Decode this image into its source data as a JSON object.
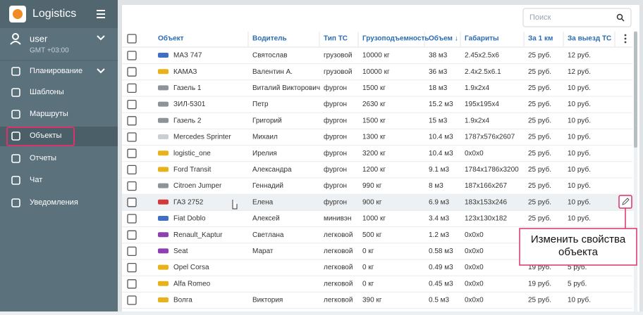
{
  "app": {
    "title": "Logistics"
  },
  "user": {
    "name": "user",
    "timezone": "GMT +03:00"
  },
  "nav": [
    "Планирование",
    "Шаблоны",
    "Маршруты",
    "Объекты",
    "Отчеты",
    "Чат",
    "Уведомления"
  ],
  "search": {
    "placeholder": "Поиск"
  },
  "table": {
    "columns": [
      "Объект",
      "Водитель",
      "Тип ТС",
      "Грузоподъемность",
      "Объем ↓",
      "Габариты",
      "За 1 км",
      "За выезд ТС"
    ],
    "rows": [
      [
        "МАЗ 747",
        "Святослав",
        "грузовой",
        "10000 кг",
        "38 м3",
        "2.45x2.5x6",
        "25 руб.",
        "12 руб."
      ],
      [
        "КАМАЗ",
        "Валентин А.",
        "грузовой",
        "10000 кг",
        "36 м3",
        "2.4x2.5x6.1",
        "25 руб.",
        "12 руб."
      ],
      [
        "Газель 1",
        "Виталий Викторович",
        "фургон",
        "1500 кг",
        "18 м3",
        "1.9x2x4",
        "25 руб.",
        "10 руб."
      ],
      [
        "ЗИЛ-5301",
        "Петр",
        "фургон",
        "2630 кг",
        "15.2 м3",
        "195x195x4",
        "25 руб.",
        "10 руб."
      ],
      [
        "Газель 2",
        "Григорий",
        "фургон",
        "1500 кг",
        "15 м3",
        "1.9x2x4",
        "25 руб.",
        "10 руб."
      ],
      [
        "Mercedes Sprinter",
        "Михаил",
        "фургон",
        "1300 кг",
        "10.4 м3",
        "1787x576x2607",
        "25 руб.",
        "10 руб."
      ],
      [
        "logistic_one",
        "Ирелия",
        "фургон",
        "3200 кг",
        "10.4 м3",
        "0x0x0",
        "25 руб.",
        "10 руб."
      ],
      [
        "Ford Transit",
        "Александра",
        "фургон",
        "1200 кг",
        "9.1 м3",
        "1784x1786x3200",
        "25 руб.",
        "10 руб."
      ],
      [
        "Citroen Jumper",
        "Геннадий",
        "фургон",
        "990 кг",
        "8 м3",
        "187x166x267",
        "25 руб.",
        "10 руб."
      ],
      [
        "ГАЗ 2752",
        "Елена",
        "фургон",
        "900 кг",
        "6.9 м3",
        "183x153x246",
        "25 руб.",
        "10 руб."
      ],
      [
        "Fiat Doblo",
        "Алексей",
        "минивэн",
        "1000 кг",
        "3.4 м3",
        "123x130x182",
        "25 руб.",
        "10 руб."
      ],
      [
        "Renault_Kaptur",
        "Светлана",
        "легковой",
        "500 кг",
        "1.2 м3",
        "0x0x0",
        null,
        null
      ],
      [
        "Seat",
        "Марат",
        "легковой",
        "0 кг",
        "0.58 м3",
        "0x0x0",
        null,
        null
      ],
      [
        "Opel Corsa",
        null,
        "легковой",
        "0 кг",
        "0.49 м3",
        "0x0x0",
        "19 руб.",
        "5 руб."
      ],
      [
        "Alfa Romeo",
        null,
        "легковой",
        "0 кг",
        "0.45 м3",
        "0x0x0",
        "19 руб.",
        "5 руб."
      ],
      [
        "Волга",
        "Виктория",
        "легковой",
        "390 кг",
        "0.5 м3",
        "0x0x0",
        "25 руб.",
        "10 руб."
      ]
    ]
  },
  "callout": {
    "text": "Изменить свойства объекта"
  }
}
